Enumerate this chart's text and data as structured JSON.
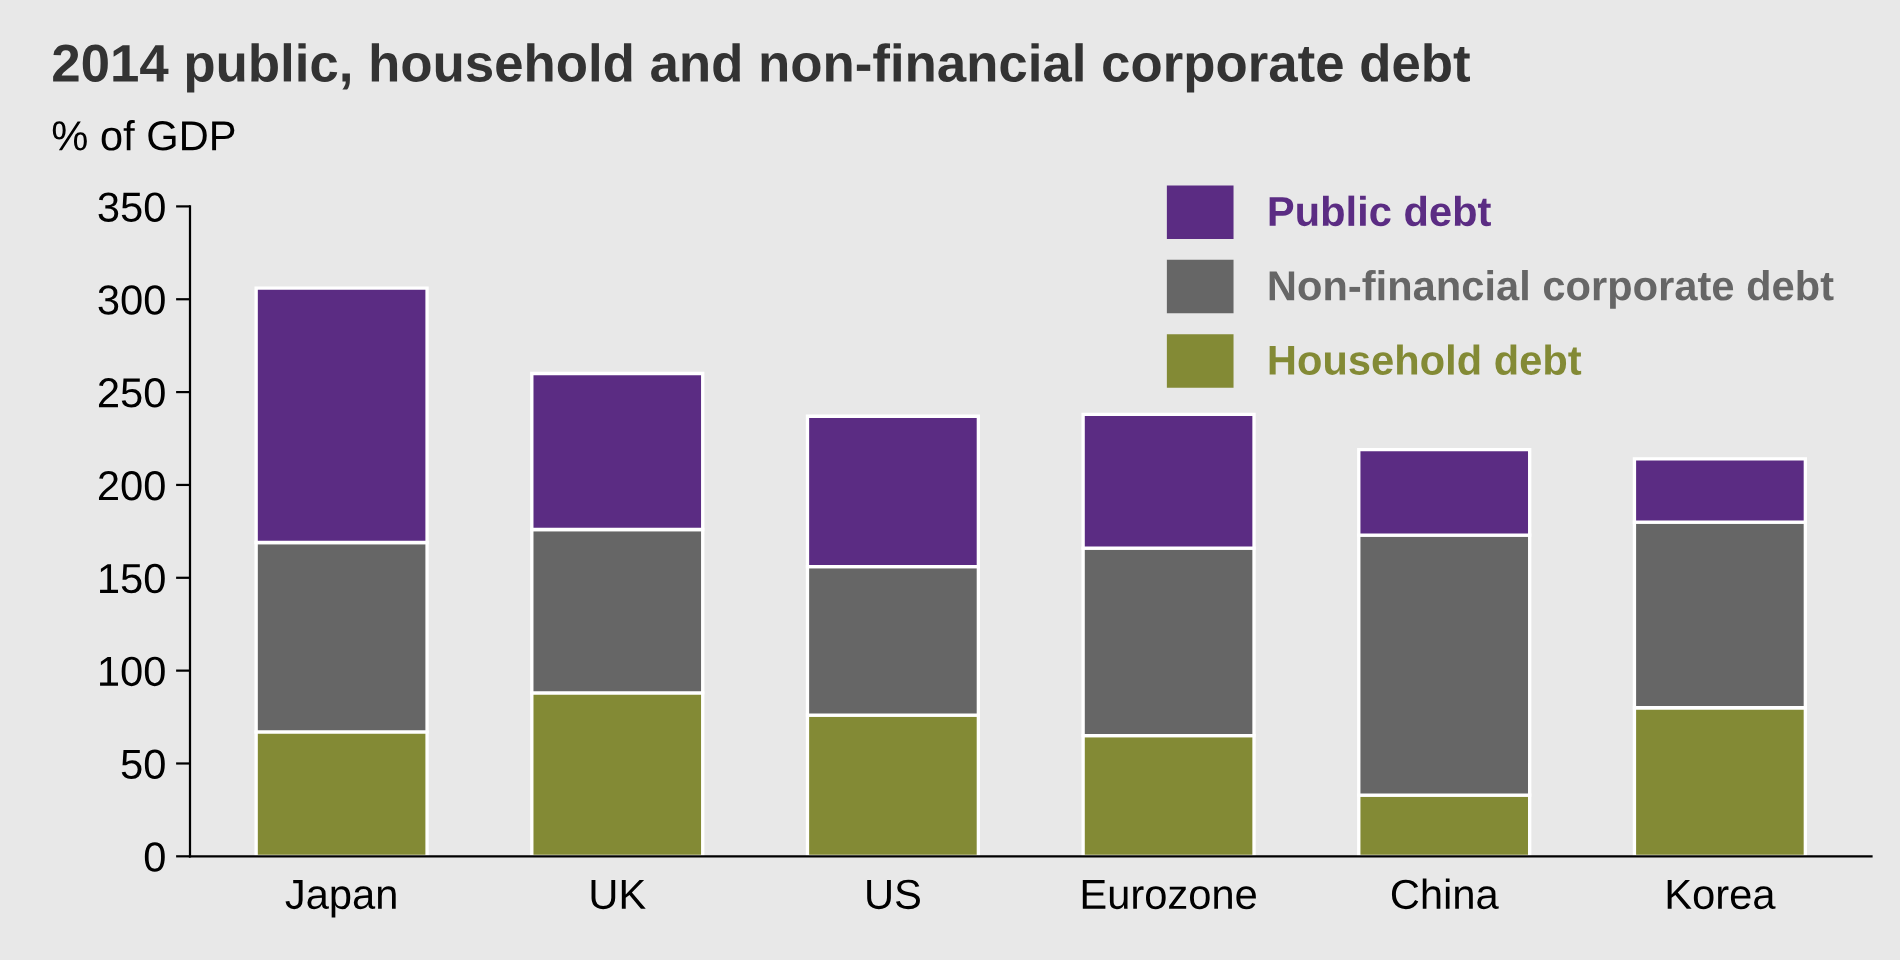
{
  "chart_data": {
    "type": "bar",
    "stacked": true,
    "title": "2014 public, household and non-financial corporate debt",
    "ylabel": "% of GDP",
    "categories": [
      "Japan",
      "UK",
      "US",
      "Eurozone",
      "China",
      "Korea"
    ],
    "series": [
      {
        "name": "Household debt",
        "color": "#838a35",
        "values": [
          67,
          88,
          76,
          65,
          33,
          80
        ]
      },
      {
        "name": "Non-financial corporate debt",
        "color": "#666666",
        "values": [
          102,
          88,
          80,
          101,
          140,
          100
        ]
      },
      {
        "name": "Public debt",
        "color": "#5b2c83",
        "values": [
          137,
          84,
          81,
          72,
          46,
          34
        ]
      }
    ],
    "ylim": [
      0,
      350
    ],
    "yticks": [
      0,
      50,
      100,
      150,
      200,
      250,
      300,
      350
    ],
    "grid": false,
    "legend": "top right"
  }
}
